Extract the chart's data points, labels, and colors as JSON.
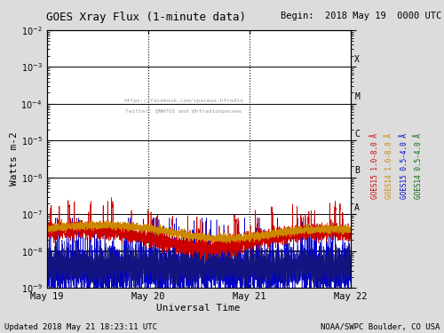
{
  "title": "GOES Xray Flux (1-minute data)",
  "begin_label": "Begin:  2018 May 19  0000 UTC",
  "ylabel": "Watts m-2",
  "xlabel": "Universal Time",
  "footer_left": "Updated 2018 May 21 18:23:11 UTC",
  "footer_right": "NOAA/SWPC Boulder, CO USA",
  "watermark_line1": "https://facebook.com/spacewx.hfradio",
  "watermark_line2": "Twitter: @NW7US and @hfradiospacews",
  "ylim_log": [
    -9,
    -2
  ],
  "xmin": 0,
  "xmax": 4320,
  "xtick_positions": [
    0,
    1440,
    2880,
    4320
  ],
  "xtick_labels": [
    "May 19",
    "May 20",
    "May 21",
    "May 22"
  ],
  "vlines": [
    1440,
    2880
  ],
  "hlines_log": [
    -8,
    -7,
    -6,
    -5,
    -4,
    -3
  ],
  "flare_labels": [
    "A",
    "B",
    "C",
    "M",
    "X"
  ],
  "flare_log_y": [
    -7,
    -6,
    -5,
    -4,
    -3
  ],
  "bg_color": "#dcdcdc",
  "plot_bg": "#ffffff",
  "goes15_long_color": "#cc0000",
  "goes14_long_color": "#cc8800",
  "goes15_short_color": "#0000cc",
  "goes14_short_color": "#006600",
  "seed": 42,
  "right_labels": [
    {
      "text": "GOES15 1.0-8.0 Å",
      "color": "#cc0000"
    },
    {
      "text": "GOES14 1.0-8.0 Å",
      "color": "#cc8800"
    },
    {
      "text": "GOES15 0.5-4.0 Å",
      "color": "#0000cc"
    },
    {
      "text": "GOES14 0.5-4.0 Å",
      "color": "#006600"
    }
  ]
}
